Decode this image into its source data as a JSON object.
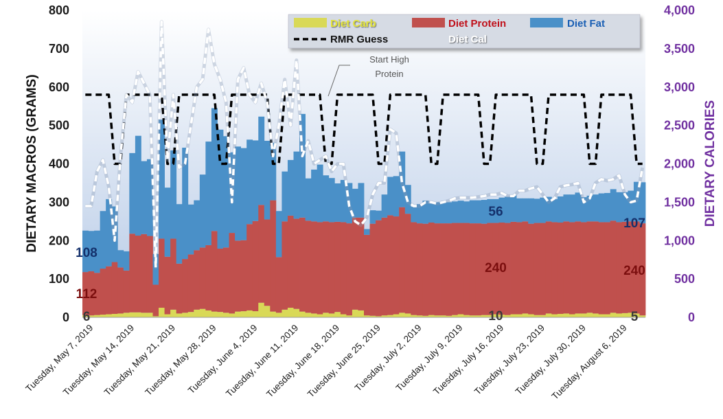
{
  "chart_data": {
    "type": "area",
    "title": "",
    "ylabel": "DIETARY MACROS (GRAMS)",
    "y2label": "DIETARY CALORIES",
    "ylim": [
      0,
      800
    ],
    "y2lim": [
      0,
      4000
    ],
    "yticks": [
      "0",
      "100",
      "200",
      "300",
      "400",
      "500",
      "600",
      "700",
      "800"
    ],
    "y2ticks": [
      "0",
      "500",
      "1,000",
      "1,500",
      "2,000",
      "2,500",
      "3,000",
      "3,500",
      "4,000"
    ],
    "grid": false,
    "legend_position": "top-right",
    "x_start": "2019-05-07",
    "x_end": "2019-08-10",
    "x_tick_labels": [
      "Tuesday, May 7, 2019",
      "Tuesday, May 14, 2019",
      "Tuesday, May 21, 2019",
      "Tuesday, May 28, 2019",
      "Tuesday, June 4, 2019",
      "Tuesday, June 11, 2019",
      "Tuesday, June 18, 2019",
      "Tuesday, June 25, 2019",
      "Tuesday, July 2, 2019",
      "Tuesday, July 9, 2019",
      "Tuesday, July 16, 2019",
      "Tuesday, July 23, 2019",
      "Tuesday, July 30, 2019",
      "Tuesday, August 6, 2019"
    ],
    "series": [
      {
        "name": "Diet Carb",
        "kind": "stacked-bar",
        "color": "#d9d957",
        "values": [
          6,
          5,
          6,
          7,
          8,
          9,
          10,
          12,
          13,
          13,
          12,
          12,
          3,
          25,
          8,
          20,
          10,
          12,
          14,
          20,
          22,
          18,
          15,
          14,
          12,
          10,
          15,
          16,
          18,
          16,
          38,
          30,
          15,
          12,
          20,
          25,
          22,
          15,
          12,
          10,
          8,
          12,
          10,
          14,
          8,
          5,
          20,
          18,
          5,
          4,
          3,
          5,
          6,
          8,
          12,
          10,
          6,
          5,
          4,
          6,
          5,
          5,
          4,
          6,
          8,
          6,
          5,
          5,
          6,
          6,
          8,
          7,
          6,
          8,
          8,
          10,
          8,
          6,
          6,
          10,
          8,
          9,
          10,
          8,
          10,
          10,
          12,
          10,
          8,
          8,
          12,
          10,
          11,
          12,
          10,
          5
        ]
      },
      {
        "name": "Diet Protein",
        "kind": "stacked-bar",
        "color": "#c0504d",
        "values": [
          112,
          115,
          110,
          120,
          125,
          135,
          120,
          110,
          205,
          200,
          205,
          200,
          82,
          180,
          150,
          185,
          130,
          140,
          150,
          155,
          160,
          170,
          210,
          165,
          170,
          210,
          185,
          185,
          225,
          235,
          255,
          225,
          290,
          145,
          230,
          240,
          235,
          245,
          240,
          240,
          240,
          238,
          238,
          235,
          240,
          240,
          240,
          242,
          210,
          240,
          250,
          255,
          260,
          255,
          275,
          260,
          242,
          240,
          240,
          241,
          240,
          240,
          241,
          240,
          238,
          240,
          240,
          240,
          238,
          240,
          238,
          240,
          240,
          241,
          240,
          240,
          236,
          240,
          240,
          240,
          240,
          238,
          240,
          240,
          240,
          238,
          238,
          240,
          240,
          240,
          240,
          238,
          238,
          238,
          240,
          240
        ]
      },
      {
        "name": "Diet Fat",
        "kind": "stacked-bar",
        "color": "#4a90c8",
        "values": [
          108,
          105,
          110,
          150,
          175,
          145,
          45,
          50,
          210,
          260,
          190,
          200,
          80,
          310,
          180,
          230,
          155,
          290,
          130,
          130,
          190,
          270,
          320,
          310,
          290,
          210,
          245,
          240,
          220,
          210,
          230,
          205,
          150,
          120,
          130,
          145,
          175,
          270,
          110,
          135,
          150,
          120,
          115,
          100,
          110,
          105,
          75,
          90,
          15,
          35,
          25,
          60,
          100,
          105,
          145,
          75,
          40,
          50,
          60,
          50,
          55,
          56,
          55,
          56,
          58,
          56,
          60,
          60,
          62,
          62,
          62,
          65,
          68,
          70,
          62,
          60,
          66,
          63,
          66,
          64,
          60,
          68,
          70,
          72,
          75,
          65,
          67,
          70,
          75,
          76,
          82,
          78,
          77,
          80,
          103,
          107
        ]
      },
      {
        "name": "RMR Guess",
        "kind": "line",
        "axis": "right",
        "color": "#000000",
        "values": [
          2900,
          2900,
          2900,
          2900,
          2900,
          2000,
          2000,
          2900,
          2900,
          2900,
          2900,
          2900,
          2900,
          2900,
          2000,
          2000,
          2900,
          2900,
          2900,
          2900,
          2900,
          2900,
          2900,
          2000,
          2000,
          2900,
          2900,
          2900,
          2900,
          2900,
          2900,
          2900,
          2000,
          2000,
          2900,
          2900,
          2900,
          2900,
          2900,
          2900,
          2900,
          2000,
          2000,
          2900,
          2900,
          2900,
          2900,
          2900,
          2900,
          2900,
          2000,
          2000,
          2900,
          2900,
          2900,
          2900,
          2900,
          2900,
          2900,
          2000,
          2000,
          2900,
          2900,
          2900,
          2900,
          2900,
          2900,
          2900,
          2000,
          2000,
          2900,
          2900,
          2900,
          2900,
          2900,
          2900,
          2900,
          2000,
          2000,
          2900,
          2900,
          2900,
          2900,
          2900,
          2900,
          2900,
          2000,
          2000,
          2900,
          2900,
          2900,
          2900,
          2900,
          2900,
          2000,
          2000
        ]
      },
      {
        "name": "Diet Cal",
        "kind": "line",
        "axis": "right",
        "color": "#ffffff",
        "values": [
          1450,
          1450,
          1900,
          2050,
          1700,
          1000,
          2100,
          2900,
          2800,
          3200,
          3050,
          2900,
          650,
          3850,
          2050,
          2900,
          1950,
          2000,
          2500,
          3000,
          3100,
          3750,
          3300,
          3100,
          2800,
          1500,
          3100,
          3250,
          2900,
          2800,
          3050,
          2800,
          2100,
          2500,
          3100,
          2500,
          3350,
          2100,
          2300,
          2000,
          2050,
          2100,
          1900,
          2000,
          2000,
          1450,
          1250,
          1200,
          1300,
          1600,
          1750,
          1750,
          2450,
          2400,
          1750,
          1500,
          1450,
          1450,
          1500,
          1500,
          1480,
          1500,
          1520,
          1550,
          1560,
          1560,
          1560,
          1570,
          1580,
          1600,
          1600,
          1620,
          1580,
          1580,
          1650,
          1650,
          1680,
          1700,
          1600,
          1500,
          1550,
          1700,
          1720,
          1730,
          1750,
          1500,
          1550,
          1750,
          1800,
          1780,
          1800,
          1850,
          1600,
          1500,
          1520,
          1950
        ]
      }
    ],
    "legend": {
      "diet_carb": "Diet Carb",
      "diet_protein": "Diet Protein",
      "diet_fat": "Diet Fat",
      "rmr_guess": "RMR Guess",
      "diet_cal": "Diet Cal"
    },
    "annotations": {
      "start_high_protein_1": "Start High",
      "start_high_protein_2": "Protein"
    },
    "data_labels": {
      "carb_start": "6",
      "protein_start": "112",
      "fat_start": "108",
      "carb_mid": "10",
      "protein_mid": "240",
      "fat_mid": "56",
      "carb_end": "5",
      "protein_end": "240",
      "fat_end": "107"
    },
    "colors": {
      "carb_label": "#3a3a3a",
      "protein_label": "#7b0e0e",
      "fat_label": "#14306b",
      "calorie_axis": "#7030a0",
      "carb_legend_text": "#e3e337",
      "protein_legend_text": "#c0101a",
      "fat_legend_text": "#1a5fb4"
    }
  }
}
